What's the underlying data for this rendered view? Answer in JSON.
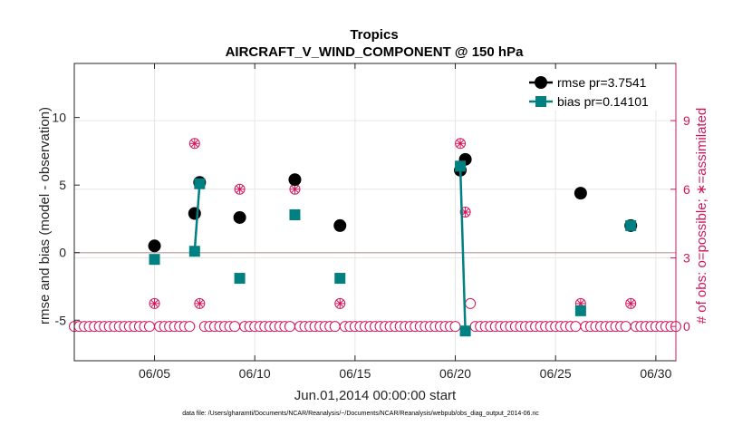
{
  "chart_data": {
    "type": "line",
    "title": "Tropics",
    "subtitle": "AIRCRAFT_V_WIND_COMPONENT @ 150 hPa",
    "xlabel": "Jun.01,2014 00:00:00 start",
    "ylabel": "rmse and bias (model - observation)",
    "y2label": "# of obs: o=possible; ∗=assimilated",
    "footnote": "data file: /Users/gharamti/Documents/NCAR/Reanalysis/~/Documents/NCAR/Reanalysis/webpub/obs_diag_output_2014-06.nc",
    "xlim": [
      1,
      31
    ],
    "ylim": [
      -8,
      14
    ],
    "y2lim": [
      -1.5,
      11.5
    ],
    "xticks": [
      5,
      10,
      15,
      20,
      25,
      30
    ],
    "xticklabels": [
      "06/05",
      "06/10",
      "06/15",
      "06/20",
      "06/25",
      "06/30"
    ],
    "yticks": [
      -5,
      0,
      5,
      10
    ],
    "y2ticks": [
      0,
      3,
      6,
      9
    ],
    "grid": true,
    "legend_location": "top-right",
    "colors": {
      "rmse": "#000000",
      "bias": "#008080",
      "obs": "#d4145a",
      "zero_line": "#c8b0b0"
    },
    "series": [
      {
        "name": "rmse pr=3.7541",
        "kind": "markers",
        "x": [
          5.0,
          7.0,
          7.25,
          9.25,
          12.0,
          14.25,
          20.25,
          20.5,
          26.25,
          28.75
        ],
        "y": [
          0.5,
          2.9,
          5.2,
          2.6,
          5.4,
          2.0,
          6.1,
          6.9,
          4.4,
          2.0
        ]
      },
      {
        "name": "bias pr=0.14101",
        "kind": "markers-line",
        "x": [
          5.0,
          7.0,
          7.25,
          9.25,
          12.0,
          14.25,
          20.25,
          20.5,
          26.25,
          28.75
        ],
        "y": [
          -0.5,
          0.1,
          5.1,
          -1.9,
          2.8,
          -1.9,
          6.4,
          -5.8,
          -4.3,
          2.0
        ],
        "segments": [
          [
            7.0,
            7.25
          ],
          [
            20.25,
            20.5
          ]
        ]
      },
      {
        "name": "possible",
        "kind": "circle-markers",
        "axis": "right",
        "x_start": 1.0,
        "x_end": 31.0,
        "x_step": 0.25,
        "overrides": [
          [
            5.0,
            1
          ],
          [
            7.0,
            8
          ],
          [
            7.25,
            1
          ],
          [
            9.25,
            6
          ],
          [
            12.0,
            6
          ],
          [
            14.25,
            1
          ],
          [
            20.25,
            8
          ],
          [
            20.5,
            5
          ],
          [
            20.75,
            1
          ],
          [
            26.25,
            1
          ],
          [
            28.75,
            1
          ]
        ],
        "default": 0
      },
      {
        "name": "assimilated",
        "kind": "star-markers",
        "axis": "right",
        "x": [
          5.0,
          7.0,
          7.25,
          9.25,
          12.0,
          14.25,
          20.25,
          20.5,
          26.25,
          28.75
        ],
        "y": [
          1,
          8,
          1,
          6,
          6,
          1,
          8,
          5,
          1,
          1
        ]
      }
    ]
  }
}
